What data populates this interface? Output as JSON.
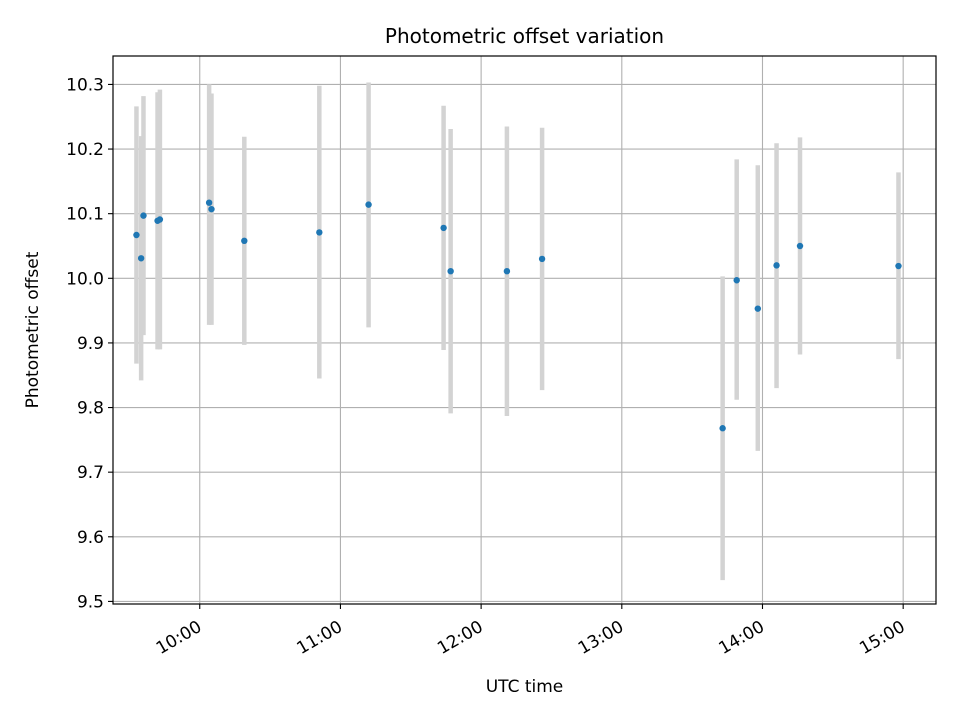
{
  "chart_data": {
    "type": "scatter",
    "title": "Photometric offset variation",
    "xlabel": "UTC time",
    "ylabel": "Photometric offset",
    "x_tick_labels": [
      "10:00",
      "11:00",
      "12:00",
      "13:00",
      "14:00",
      "15:00"
    ],
    "y_tick_labels": [
      "9.5",
      "9.6",
      "9.7",
      "9.8",
      "9.9",
      "10.0",
      "10.1",
      "10.2",
      "10.3"
    ],
    "y_ticks": [
      9.5,
      9.6,
      9.7,
      9.8,
      9.9,
      10.0,
      10.1,
      10.2,
      10.3
    ],
    "xlim": [
      "09:23",
      "15:14"
    ],
    "ylim": [
      9.496,
      10.344
    ],
    "grid": true,
    "colors": {
      "points": "#1f77b4",
      "errorbars": "#d3d3d3",
      "grid": "#b0b0b0"
    },
    "series": [
      {
        "x": [
          "09:33",
          "09:35",
          "09:36",
          "09:42",
          "09:43",
          "10:04",
          "10:05",
          "10:19",
          "10:51",
          "11:12",
          "11:44",
          "11:47",
          "12:11",
          "12:26",
          "13:43",
          "13:49",
          "13:58",
          "14:06",
          "14:16",
          "14:58"
        ],
        "y": [
          10.067,
          10.031,
          10.097,
          10.089,
          10.091,
          10.117,
          10.107,
          10.058,
          10.071,
          10.114,
          10.078,
          10.011,
          10.011,
          10.03,
          9.768,
          9.997,
          9.953,
          10.02,
          10.05,
          10.019
        ],
        "yerr_low": [
          9.868,
          9.842,
          9.912,
          9.89,
          9.89,
          9.928,
          9.928,
          9.897,
          9.845,
          9.924,
          9.889,
          9.791,
          9.787,
          9.827,
          9.533,
          9.812,
          9.733,
          9.83,
          9.882,
          9.875
        ],
        "yerr_high": [
          10.266,
          10.22,
          10.282,
          10.288,
          10.292,
          10.3,
          10.286,
          10.219,
          10.298,
          10.303,
          10.267,
          10.231,
          10.235,
          10.233,
          10.003,
          10.184,
          10.175,
          10.209,
          10.218,
          10.164
        ]
      }
    ]
  }
}
